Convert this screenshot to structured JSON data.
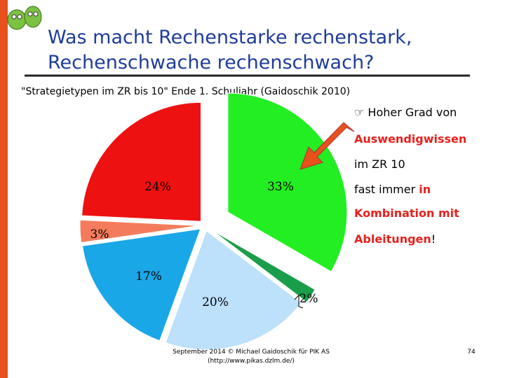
{
  "slide": {
    "title_lines": [
      "Was macht Rechenstarke rechenstark,",
      "Rechenschwache rechenschwach?"
    ],
    "subtitle": "\"Strategietypen im ZR bis 10\" Ende 1. Schuljahr (Gaidoschik 2010)",
    "notes": [
      "☞ Hoher Grad von",
      "Auswendigwissen",
      "im ZR 10",
      "fast immer",
      "in",
      "Kombination mit",
      "Ableitungen",
      "!"
    ],
    "footer_lines": [
      "September 2014 © Michael Gaidoschik für PIK AS",
      "(http://www.pikas.dzlm.de/)"
    ],
    "page_number": "74"
  },
  "chart_data": {
    "type": "pie",
    "values": [
      33,
      2,
      20,
      17,
      3,
      24
    ],
    "value_labels": [
      "33%",
      "2%",
      "20%",
      "17%",
      "3%",
      "24%"
    ],
    "colors": [
      "#22ee22",
      "#1a9e4a",
      "#bde0fb",
      "#1aa7e8",
      "#f47c5c",
      "#ee1111"
    ]
  }
}
